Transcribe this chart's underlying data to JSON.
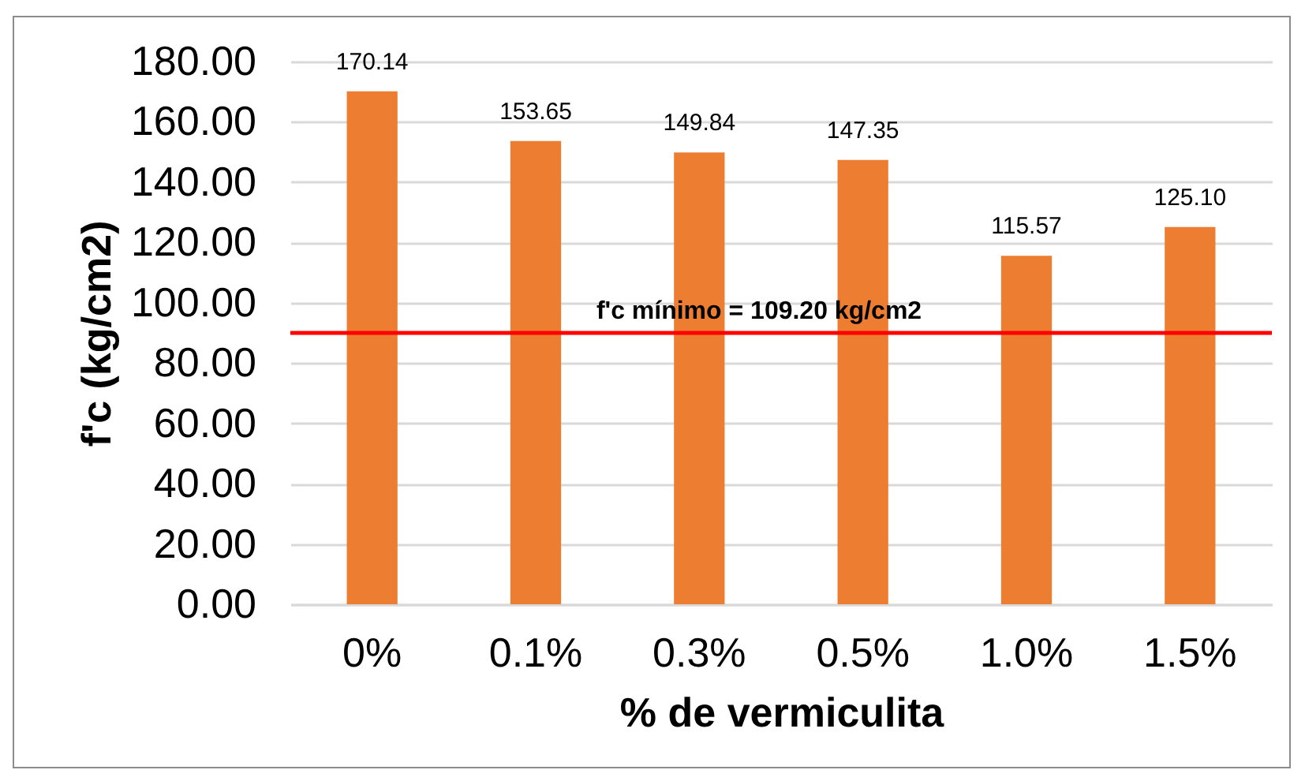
{
  "chart_data": {
    "type": "bar",
    "categories": [
      "0%",
      "0.1%",
      "0.3%",
      "0.5%",
      "1.0%",
      "1.5%"
    ],
    "values": [
      170.14,
      153.65,
      149.84,
      147.35,
      115.57,
      125.1
    ],
    "value_labels": [
      "170.14",
      "153.65",
      "149.84",
      "147.35",
      "115.57",
      "125.10"
    ],
    "color": "#ed7d31",
    "xlabel": "% de vermiculita",
    "ylabel": "f'c (kg/cm2)",
    "ylim": [
      0,
      180
    ],
    "yticks": [
      {
        "value": 0,
        "label": "0.00"
      },
      {
        "value": 20,
        "label": "20.00"
      },
      {
        "value": 40,
        "label": "40.00"
      },
      {
        "value": 60,
        "label": "60.00"
      },
      {
        "value": 80,
        "label": "80.00"
      },
      {
        "value": 100,
        "label": "100.00"
      },
      {
        "value": 120,
        "label": "120.00"
      },
      {
        "value": 140,
        "label": "140.00"
      },
      {
        "value": 160,
        "label": "160.00"
      },
      {
        "value": 180,
        "label": "180.00"
      }
    ],
    "grid": "y",
    "ref_lines": [
      {
        "axis": "y",
        "value": 90,
        "color": "#ff0000"
      }
    ],
    "annotations": [
      "f'c mínimo = 109.20 kg/cm2"
    ]
  }
}
